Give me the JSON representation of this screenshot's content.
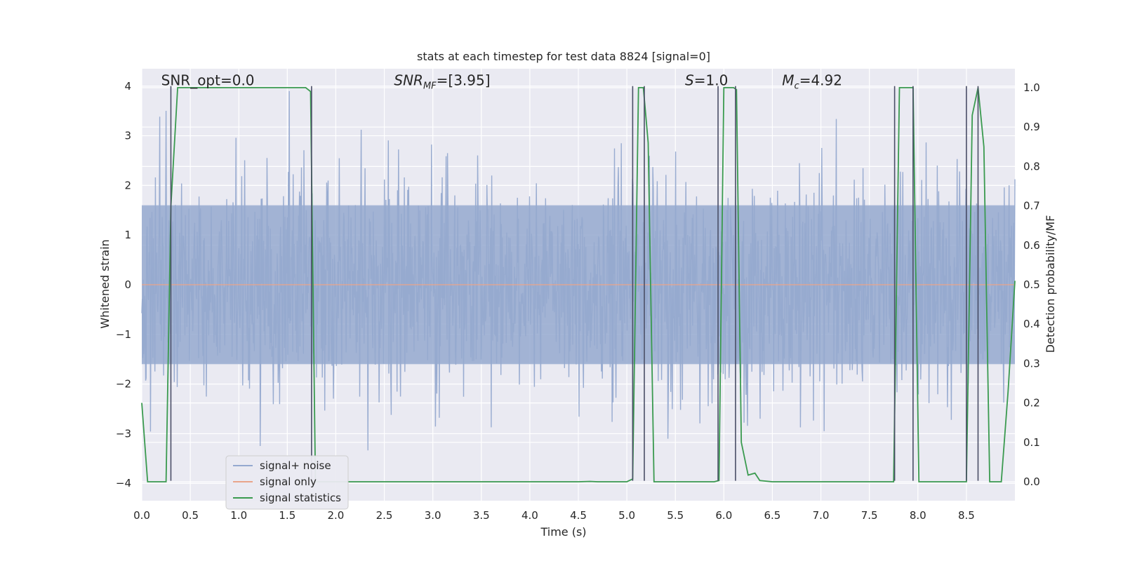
{
  "chart_data": {
    "type": "line",
    "title": "stats at each timestep for test data 8824 [signal=0]",
    "xlabel": "Time (s)",
    "ylabel": "Whitened strain",
    "y2label": "Detection probability/MF",
    "xlim": [
      0.0,
      9.0
    ],
    "ylim": [
      -4.35,
      4.35
    ],
    "y2lim": [
      -0.048,
      1.048
    ],
    "x_ticks": [
      "0.0",
      "0.5",
      "1.0",
      "1.5",
      "2.0",
      "2.5",
      "3.0",
      "3.5",
      "4.0",
      "4.5",
      "5.0",
      "5.5",
      "6.0",
      "6.5",
      "7.0",
      "7.5",
      "8.0",
      "8.5"
    ],
    "y_ticks": [
      "4",
      "3",
      "2",
      "1",
      "0",
      "−1",
      "−2",
      "−3",
      "−4"
    ],
    "y2_ticks": [
      "1.0",
      "0.9",
      "0.8",
      "0.7",
      "0.6",
      "0.5",
      "0.4",
      "0.3",
      "0.2",
      "0.1",
      "0.0"
    ],
    "grid": true,
    "legend_position": "lower-left",
    "annotations": [
      {
        "id": "snr_opt",
        "text": "SNR_opt=0.0",
        "x": 0.2,
        "y": 4.1
      },
      {
        "id": "snr_mf",
        "text": "SNR",
        "sub": "MF",
        "suffix": "=[3.95]",
        "x": 2.6,
        "y": 4.1
      },
      {
        "id": "s",
        "text": "S",
        "suffix": "=1.0",
        "x": 5.6,
        "y": 4.1
      },
      {
        "id": "mc",
        "text": "M",
        "sub": "c",
        "suffix": "=4.92",
        "x": 6.6,
        "y": 4.1
      }
    ],
    "series": [
      {
        "name": "signal+ noise",
        "color": "#95a9cf",
        "axis": "left",
        "kind": "noise",
        "x_range": [
          0.0,
          9.0
        ],
        "amplitude_sigma": 1.0,
        "peak_range": [
          -3.9,
          3.9
        ]
      },
      {
        "name": "signal only",
        "color": "#e9a58a",
        "axis": "left",
        "x": [
          0.0,
          9.0
        ],
        "y": [
          0.0,
          0.0
        ]
      },
      {
        "name": "signal statistics",
        "color": "#3a9a4f",
        "axis": "right",
        "x": [
          0.0,
          0.06,
          0.2,
          0.25,
          0.3,
          0.37,
          1.0,
          1.69,
          1.74,
          1.79,
          2.0,
          3.0,
          4.0,
          4.5,
          4.62,
          4.7,
          5.0,
          5.06,
          5.12,
          5.17,
          5.22,
          5.28,
          5.33,
          5.5,
          5.9,
          5.95,
          6.0,
          6.1,
          6.13,
          6.18,
          6.25,
          6.32,
          6.37,
          6.5,
          7.0,
          7.5,
          7.75,
          7.81,
          7.95,
          8.01,
          8.07,
          8.3,
          8.5,
          8.56,
          8.62,
          8.68,
          8.74,
          8.79,
          8.86,
          8.93,
          9.0
        ],
        "y": [
          0.2,
          0.0,
          0.0,
          0.0,
          0.7,
          1.0,
          1.0,
          1.0,
          0.99,
          0.0,
          0.0,
          0.0,
          0.0,
          0.0,
          0.001,
          0.0,
          0.0,
          0.007,
          1.0,
          1.0,
          0.86,
          0.0,
          0.0,
          0.0,
          0.0,
          0.003,
          1.0,
          1.0,
          0.995,
          0.1,
          0.017,
          0.022,
          0.003,
          0.0,
          0.0,
          0.0,
          0.0,
          1.0,
          1.0,
          0.0,
          0.0,
          0.0,
          0.0,
          0.93,
          1.0,
          0.85,
          0.0,
          0.0,
          0.0,
          0.23,
          0.51
        ]
      },
      {
        "name": "",
        "color": "#4a4e66",
        "axis": "left",
        "kind": "vlines",
        "x": [
          0.3,
          1.75,
          5.06,
          5.18,
          5.94,
          6.12,
          7.76,
          7.95,
          8.5,
          8.62
        ],
        "y_range": [
          -3.95,
          4.0
        ]
      }
    ]
  },
  "legend": {
    "items": [
      {
        "label": "signal+ noise",
        "color": "#95a9cf"
      },
      {
        "label": "signal only",
        "color": "#e9a58a"
      },
      {
        "label": "signal statistics",
        "color": "#3a9a4f"
      }
    ]
  }
}
